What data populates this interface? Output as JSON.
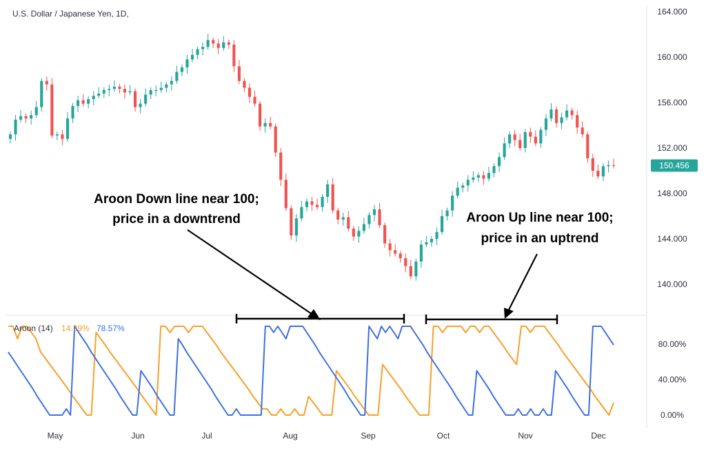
{
  "chart_data": [
    {
      "type": "candlestick",
      "title": "U.S. Dollar / Japanese Yen, 1D,",
      "ylim": [
        138.0,
        164.0
      ],
      "y_ticks": [
        "164.000",
        "160.000",
        "156.000",
        "152.000",
        "148.000",
        "144.000",
        "140.000"
      ],
      "last_price_label": "150.456",
      "colors": {
        "up": "#26a69a",
        "down": "#ef5350",
        "last_price_bg": "#26a69a"
      },
      "x_ticks": [
        "May",
        "Jun",
        "Jul",
        "Aug",
        "Sep",
        "Oct",
        "Nov",
        "Dec"
      ],
      "close_series": [
        {
          "x": "Apr",
          "y": 153.2
        },
        {
          "x": "Apr",
          "y": 154.5
        },
        {
          "x": "Apr",
          "y": 154.8
        },
        {
          "x": "Apr",
          "y": 154.6
        },
        {
          "x": "Apr",
          "y": 154.9
        },
        {
          "x": "Apr",
          "y": 155.6
        },
        {
          "x": "Apr",
          "y": 157.9
        },
        {
          "x": "Apr",
          "y": 157.6
        },
        {
          "x": "May",
          "y": 153.1
        },
        {
          "x": "May",
          "y": 153.2
        },
        {
          "x": "May",
          "y": 152.8
        },
        {
          "x": "May",
          "y": 154.6
        },
        {
          "x": "May",
          "y": 155.7
        },
        {
          "x": "May",
          "y": 156.2
        },
        {
          "x": "May",
          "y": 155.9
        },
        {
          "x": "May",
          "y": 156.3
        },
        {
          "x": "May",
          "y": 156.6
        },
        {
          "x": "May",
          "y": 156.8
        },
        {
          "x": "May",
          "y": 157.1
        },
        {
          "x": "May",
          "y": 157.2
        },
        {
          "x": "May",
          "y": 157.4
        },
        {
          "x": "May",
          "y": 157.2
        },
        {
          "x": "May",
          "y": 156.9
        },
        {
          "x": "May",
          "y": 157.0
        },
        {
          "x": "Jun",
          "y": 155.6
        },
        {
          "x": "Jun",
          "y": 155.9
        },
        {
          "x": "Jun",
          "y": 156.7
        },
        {
          "x": "Jun",
          "y": 157.1
        },
        {
          "x": "Jun",
          "y": 157.1
        },
        {
          "x": "Jun",
          "y": 157.3
        },
        {
          "x": "Jun",
          "y": 157.6
        },
        {
          "x": "Jun",
          "y": 157.9
        },
        {
          "x": "Jun",
          "y": 158.7
        },
        {
          "x": "Jun",
          "y": 159.1
        },
        {
          "x": "Jun",
          "y": 159.8
        },
        {
          "x": "Jun",
          "y": 160.2
        },
        {
          "x": "Jun",
          "y": 160.7
        },
        {
          "x": "Jun",
          "y": 160.9
        },
        {
          "x": "Jul",
          "y": 161.5
        },
        {
          "x": "Jul",
          "y": 161.2
        },
        {
          "x": "Jul",
          "y": 160.8
        },
        {
          "x": "Jul",
          "y": 161.3
        },
        {
          "x": "Jul",
          "y": 161.1
        },
        {
          "x": "Jul",
          "y": 159.2
        },
        {
          "x": "Jul",
          "y": 157.9
        },
        {
          "x": "Jul",
          "y": 157.3
        },
        {
          "x": "Jul",
          "y": 156.5
        },
        {
          "x": "Jul",
          "y": 155.9
        },
        {
          "x": "Jul",
          "y": 153.9
        },
        {
          "x": "Jul",
          "y": 154.2
        },
        {
          "x": "Jul",
          "y": 153.9
        },
        {
          "x": "Jul",
          "y": 151.6
        },
        {
          "x": "Aug",
          "y": 149.2
        },
        {
          "x": "Aug",
          "y": 146.7
        },
        {
          "x": "Aug",
          "y": 144.3
        },
        {
          "x": "Aug",
          "y": 145.8
        },
        {
          "x": "Aug",
          "y": 146.8
        },
        {
          "x": "Aug",
          "y": 147.3
        },
        {
          "x": "Aug",
          "y": 147.0
        },
        {
          "x": "Aug",
          "y": 146.8
        },
        {
          "x": "Aug",
          "y": 147.7
        },
        {
          "x": "Aug",
          "y": 148.8
        },
        {
          "x": "Aug",
          "y": 146.5
        },
        {
          "x": "Aug",
          "y": 145.7
        },
        {
          "x": "Aug",
          "y": 145.9
        },
        {
          "x": "Aug",
          "y": 144.9
        },
        {
          "x": "Aug",
          "y": 144.2
        },
        {
          "x": "Aug",
          "y": 144.7
        },
        {
          "x": "Aug",
          "y": 145.3
        },
        {
          "x": "Aug",
          "y": 146.1
        },
        {
          "x": "Sep",
          "y": 146.6
        },
        {
          "x": "Sep",
          "y": 145.2
        },
        {
          "x": "Sep",
          "y": 143.6
        },
        {
          "x": "Sep",
          "y": 143.0
        },
        {
          "x": "Sep",
          "y": 142.7
        },
        {
          "x": "Sep",
          "y": 142.3
        },
        {
          "x": "Sep",
          "y": 141.6
        },
        {
          "x": "Sep",
          "y": 140.7
        },
        {
          "x": "Sep",
          "y": 142.0
        },
        {
          "x": "Sep",
          "y": 143.5
        },
        {
          "x": "Sep",
          "y": 143.7
        },
        {
          "x": "Sep",
          "y": 144.0
        },
        {
          "x": "Sep",
          "y": 144.6
        },
        {
          "x": "Oct",
          "y": 146.0
        },
        {
          "x": "Oct",
          "y": 146.5
        },
        {
          "x": "Oct",
          "y": 147.8
        },
        {
          "x": "Oct",
          "y": 148.5
        },
        {
          "x": "Oct",
          "y": 148.7
        },
        {
          "x": "Oct",
          "y": 149.2
        },
        {
          "x": "Oct",
          "y": 149.4
        },
        {
          "x": "Oct",
          "y": 149.6
        },
        {
          "x": "Oct",
          "y": 149.3
        },
        {
          "x": "Oct",
          "y": 149.8
        },
        {
          "x": "Oct",
          "y": 150.4
        },
        {
          "x": "Oct",
          "y": 151.2
        },
        {
          "x": "Oct",
          "y": 152.4
        },
        {
          "x": "Oct",
          "y": 153.2
        },
        {
          "x": "Nov",
          "y": 152.7
        },
        {
          "x": "Nov",
          "y": 152.0
        },
        {
          "x": "Nov",
          "y": 153.4
        },
        {
          "x": "Nov",
          "y": 153.0
        },
        {
          "x": "Nov",
          "y": 152.4
        },
        {
          "x": "Nov",
          "y": 153.6
        },
        {
          "x": "Nov",
          "y": 154.6
        },
        {
          "x": "Nov",
          "y": 155.4
        },
        {
          "x": "Nov",
          "y": 154.2
        },
        {
          "x": "Nov",
          "y": 154.7
        },
        {
          "x": "Nov",
          "y": 155.3
        },
        {
          "x": "Nov",
          "y": 154.9
        },
        {
          "x": "Nov",
          "y": 153.8
        },
        {
          "x": "Nov",
          "y": 153.2
        },
        {
          "x": "Dec",
          "y": 151.1
        },
        {
          "x": "Dec",
          "y": 150.0
        },
        {
          "x": "Dec",
          "y": 149.5
        },
        {
          "x": "Dec",
          "y": 150.4
        },
        {
          "x": "Dec",
          "y": 150.5
        },
        {
          "x": "Dec",
          "y": 150.456
        }
      ],
      "annotations": [
        {
          "text": [
            "Aroon Down line near 100;",
            "price in a downtrend"
          ]
        },
        {
          "text": [
            "Aroon Up line near 100;",
            "price in an uptrend"
          ]
        }
      ]
    },
    {
      "type": "line",
      "legend_title": "Aroon (14)",
      "legend_values": [
        "14.29%",
        "78.57%"
      ],
      "ylim": [
        0,
        100
      ],
      "y_ticks": [
        "80.00%",
        "40.00%",
        "0.00%"
      ],
      "series": [
        {
          "color": "#f5a12a",
          "values": [
            100,
            100,
            86,
            100,
            100,
            93,
            86,
            71,
            64,
            57,
            50,
            43,
            36,
            29,
            21,
            14,
            7,
            0,
            0,
            93,
            86,
            79,
            71,
            64,
            57,
            50,
            43,
            36,
            29,
            21,
            14,
            7,
            0,
            100,
            100,
            93,
            100,
            100,
            100,
            93,
            100,
            100,
            100,
            93,
            86,
            79,
            71,
            64,
            57,
            50,
            43,
            36,
            29,
            21,
            14,
            7,
            7,
            0,
            0,
            7,
            0,
            0,
            7,
            0,
            0,
            21,
            14,
            7,
            0,
            0,
            0,
            50,
            43,
            36,
            29,
            21,
            14,
            7,
            0,
            0,
            0,
            57,
            50,
            43,
            36,
            29,
            21,
            14,
            7,
            0,
            0,
            0,
            100,
            100,
            93,
            100,
            100,
            100,
            100,
            93,
            100,
            100,
            93,
            100,
            100,
            93,
            86,
            79,
            71,
            64,
            57,
            100,
            100,
            93,
            100,
            100,
            100,
            93,
            86,
            79,
            71,
            64,
            57,
            50,
            43,
            36,
            29,
            21,
            14,
            7,
            0,
            14
          ]
        },
        {
          "color": "#3d6fe0",
          "values": [
            71,
            64,
            57,
            50,
            43,
            36,
            29,
            21,
            14,
            7,
            0,
            0,
            0,
            0,
            7,
            0,
            100,
            93,
            86,
            79,
            71,
            64,
            57,
            50,
            43,
            36,
            29,
            21,
            14,
            7,
            0,
            0,
            50,
            43,
            36,
            29,
            21,
            14,
            7,
            0,
            0,
            86,
            79,
            71,
            64,
            57,
            50,
            43,
            36,
            29,
            21,
            14,
            7,
            0,
            0,
            7,
            0,
            0,
            0,
            0,
            0,
            0,
            100,
            100,
            93,
            100,
            93,
            86,
            100,
            100,
            100,
            100,
            93,
            86,
            79,
            71,
            64,
            57,
            50,
            43,
            36,
            29,
            21,
            14,
            7,
            0,
            0,
            100,
            93,
            86,
            100,
            93,
            100,
            93,
            86,
            100,
            100,
            100,
            93,
            86,
            79,
            71,
            64,
            57,
            50,
            43,
            36,
            29,
            21,
            14,
            7,
            0,
            0,
            50,
            43,
            36,
            29,
            21,
            14,
            7,
            0,
            0,
            0,
            7,
            0,
            0,
            7,
            0,
            0,
            7,
            0,
            0,
            50,
            43,
            36,
            29,
            21,
            14,
            7,
            0,
            0,
            100,
            100,
            100,
            93,
            86,
            79
          ]
        }
      ]
    }
  ]
}
